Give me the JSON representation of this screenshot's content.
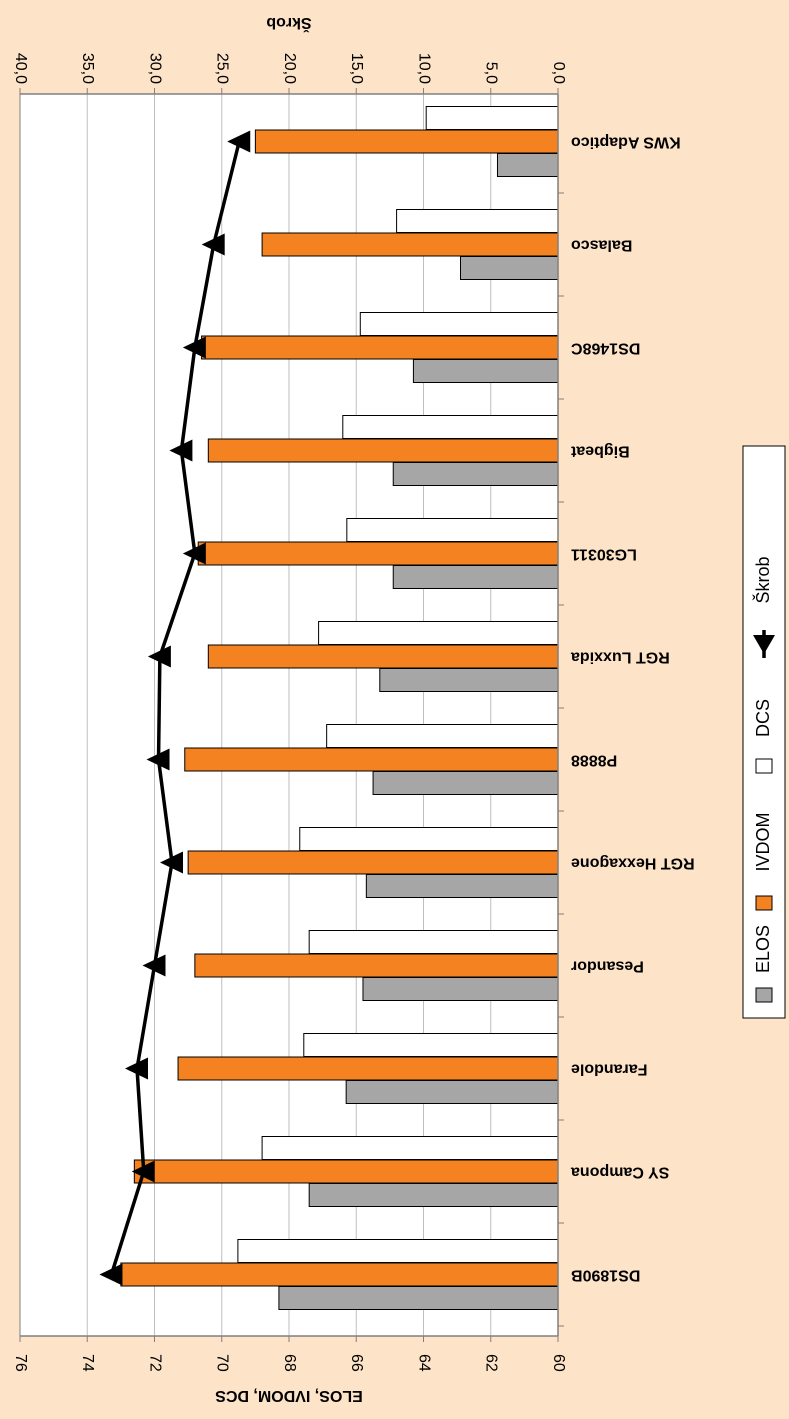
{
  "chart_data": {
    "type": "bar",
    "title": "",
    "categories": [
      "KWS Adaptico",
      "Balasco",
      "DS1468C",
      "Bigbeat",
      "LG30311",
      "RGT Luxxida",
      "P8888",
      "RGT Hexxagone",
      "Pesandor",
      "Farandole",
      "SY Campona",
      "DS1890B"
    ],
    "series": [
      {
        "name": "ELOS",
        "axis": "primary",
        "color": "#a6a6a6",
        "values": [
          61.8,
          62.9,
          64.3,
          64.9,
          64.9,
          65.3,
          65.5,
          65.7,
          65.8,
          66.3,
          67.4,
          68.3
        ]
      },
      {
        "name": "IVDOM",
        "axis": "primary",
        "color": "#f58220",
        "values": [
          69.0,
          68.8,
          70.6,
          70.4,
          70.7,
          70.4,
          71.1,
          71.0,
          70.8,
          71.3,
          72.6,
          73.0
        ]
      },
      {
        "name": "DCS",
        "axis": "secondary",
        "color": "#ffffff",
        "values": [
          9.8,
          12.0,
          14.7,
          16.0,
          15.7,
          17.8,
          17.2,
          19.2,
          18.5,
          18.9,
          22.0,
          23.8
        ]
      },
      {
        "name": "Škrob",
        "axis": "secondary",
        "type": "line",
        "color": "#000000",
        "values": [
          23.7,
          25.6,
          27.0,
          28.0,
          27.0,
          29.6,
          29.7,
          28.7,
          30.0,
          31.3,
          30.8,
          33.2
        ]
      }
    ],
    "primary_axis": {
      "label": "ELOS, IVDOM, DCS",
      "min": 60,
      "max": 76,
      "ticks": [
        "60",
        "62",
        "64",
        "66",
        "68",
        "70",
        "72",
        "74",
        "76"
      ]
    },
    "secondary_axis": {
      "label": "Škrob",
      "min": 0,
      "max": 40,
      "ticks": [
        "0,0",
        "5,0",
        "10,0",
        "15,0",
        "20,0",
        "25,0",
        "30,0",
        "35,0",
        "40,0"
      ]
    },
    "grid": true,
    "legend_position": "right",
    "orientation": "rotated 180 degrees"
  }
}
